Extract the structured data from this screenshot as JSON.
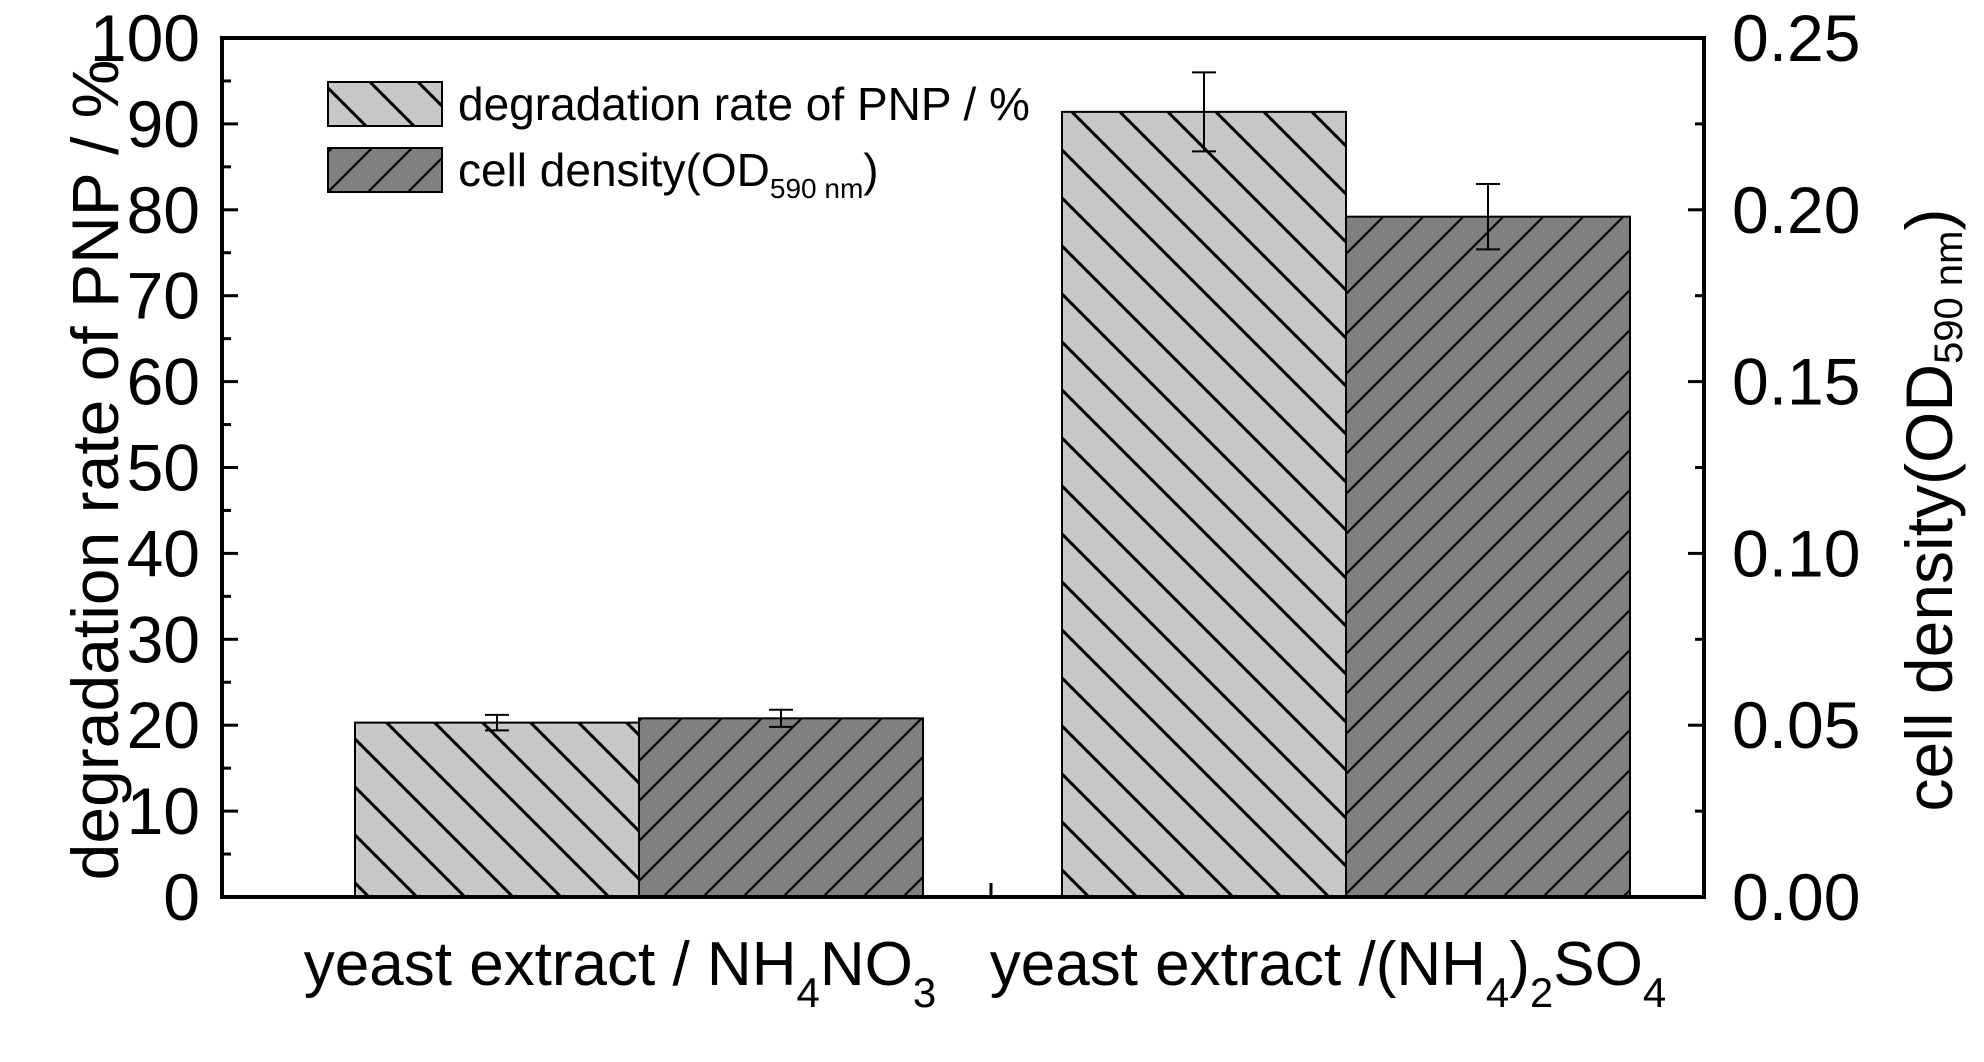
{
  "chart_data": {
    "type": "bar",
    "categories": [
      {
        "main": "yeast extract / NH",
        "parts": [
          [
            "yeast extract / NH",
            ""
          ],
          [
            "4",
            "sub"
          ],
          [
            "NO",
            ""
          ],
          [
            "3",
            "sub"
          ]
        ]
      },
      {
        "main": "yeast extract /(NH",
        "parts": [
          [
            "yeast extract /(NH",
            ""
          ],
          [
            "4",
            "sub"
          ],
          [
            ")",
            ""
          ],
          [
            "2",
            "sub"
          ],
          [
            "SO",
            ""
          ],
          [
            "4",
            "sub"
          ]
        ]
      }
    ],
    "category_labels": [
      "yeast extract / NH4NO3",
      "yeast extract /(NH4)2SO4"
    ],
    "series": [
      {
        "name": "degradation rate of PNP / %",
        "axis": "left",
        "values": [
          20.3,
          91.4
        ],
        "errors": [
          0.9,
          4.6
        ],
        "fill": "#c8c8c8",
        "hatch": "backslash"
      },
      {
        "name": "cell density(OD590 nm)",
        "axis": "right",
        "values": [
          0.052,
          0.198
        ],
        "errors": [
          0.0025,
          0.0095
        ],
        "fill": "#7f7f7f",
        "hatch": "slash"
      }
    ],
    "ylabel_left": "degradation rate of PNP / %",
    "ylabel_right": "cell density(OD590 nm)",
    "ylim_left": [
      0,
      100
    ],
    "ylim_right": [
      0,
      0.25
    ],
    "yticks_left": [
      "0",
      "10",
      "20",
      "30",
      "40",
      "50",
      "60",
      "70",
      "80",
      "90",
      "100"
    ],
    "yticks_right": [
      "0.00",
      "0.05",
      "0.10",
      "0.15",
      "0.20",
      "0.25"
    ],
    "legend": {
      "position": "top-left",
      "entries": [
        {
          "text": "degradation rate of PNP / %",
          "sub": "",
          "suffix": ""
        },
        {
          "text": "cell density(OD",
          "sub": "590 nm",
          "suffix": ")"
        }
      ]
    },
    "grid": false
  }
}
